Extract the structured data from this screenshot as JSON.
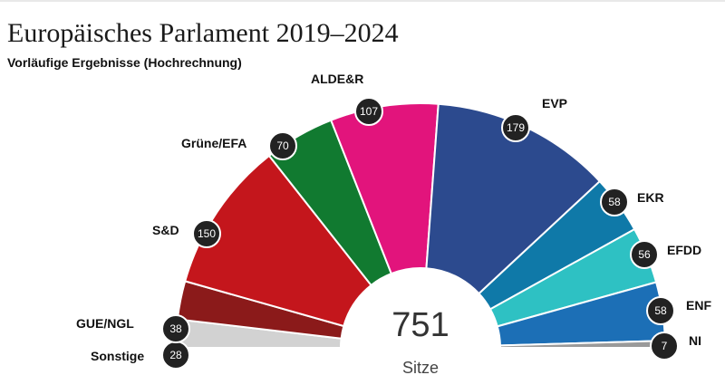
{
  "title": "Europäisches Parlament 2019–2024",
  "subtitle": "Vorläufige Ergebnisse (Hochrechnung)",
  "chart_data": {
    "type": "pie",
    "subtype": "parliament-semicircle",
    "total": "751",
    "total_label": "Sitze",
    "series": [
      {
        "name": "Sonstige",
        "value": 28,
        "color": "#d2d2d2"
      },
      {
        "name": "GUE/NGL",
        "value": 38,
        "color": "#8b1a1a"
      },
      {
        "name": "S&D",
        "value": 150,
        "color": "#c4161c"
      },
      {
        "name": "Grüne/EFA",
        "value": 70,
        "color": "#117a30"
      },
      {
        "name": "ALDE&R",
        "value": 107,
        "color": "#e2147c"
      },
      {
        "name": "EVP",
        "value": 179,
        "color": "#2c4a8e"
      },
      {
        "name": "EKR",
        "value": 58,
        "color": "#0f79a8"
      },
      {
        "name": "EFDD",
        "value": 56,
        "color": "#2ec1c3"
      },
      {
        "name": "ENF",
        "value": 58,
        "color": "#1c6fb6"
      },
      {
        "name": "NI",
        "value": 7,
        "color": "#9a9a9a"
      }
    ]
  }
}
